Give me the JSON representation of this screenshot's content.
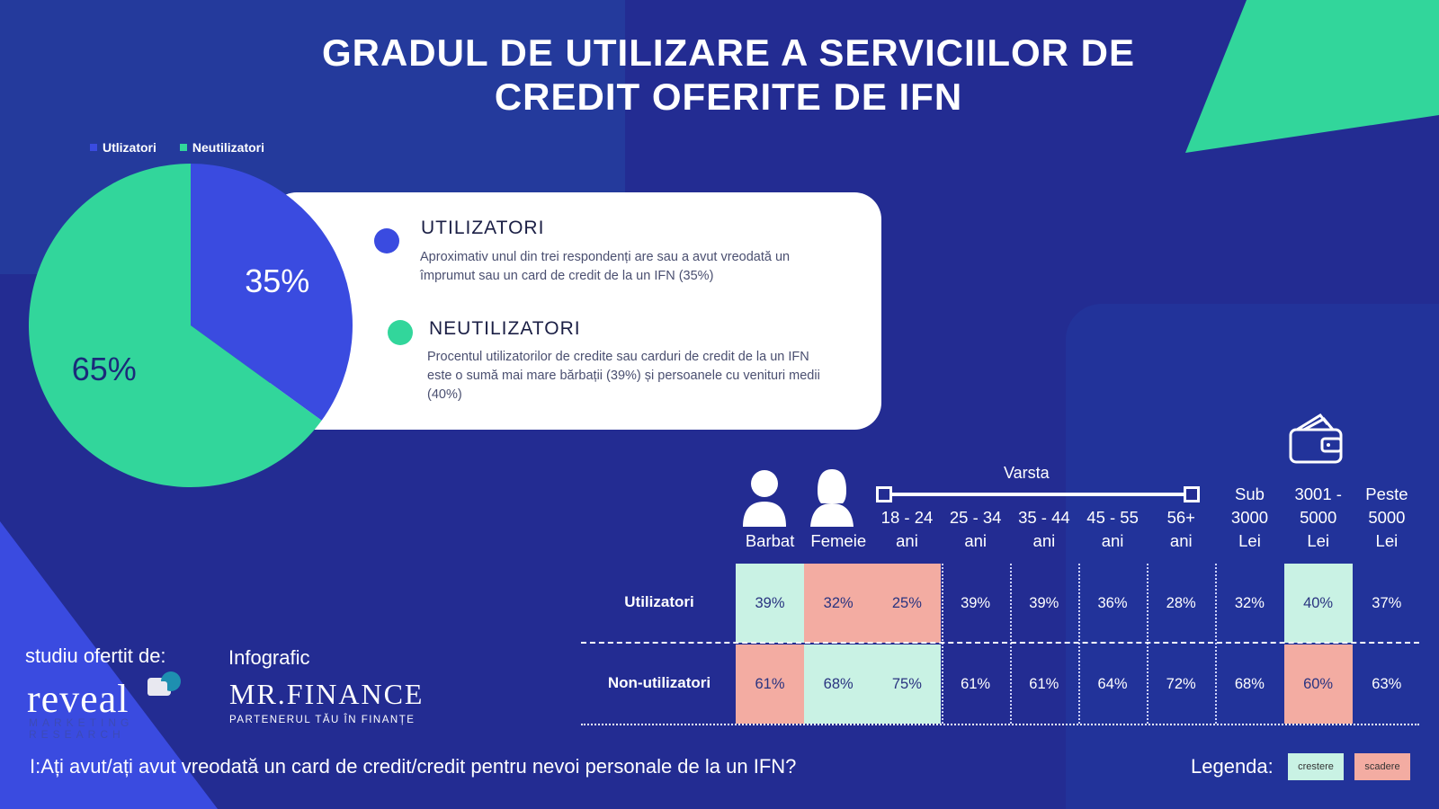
{
  "title_line1": "GRADUL DE UTILIZARE A SERVICIILOR DE",
  "title_line2": "CREDIT OFERITE DE IFN",
  "colors": {
    "users": "#3a4be0",
    "nonusers": "#32d69b",
    "increase": "#c9f2e4",
    "decrease": "#f3aca2",
    "background": "#232c92"
  },
  "legend": {
    "users": "Utlizatori",
    "nonusers": "Neutilizatori"
  },
  "chart_data": [
    {
      "type": "pie",
      "slices": [
        {
          "name": "Utlizatori",
          "value": 35,
          "label": "35%"
        },
        {
          "name": "Neutilizatori",
          "value": 65,
          "label": "65%"
        }
      ]
    },
    {
      "type": "table",
      "group_label": "Varsta",
      "columns": [
        [
          "Barbat"
        ],
        [
          "Femeie"
        ],
        [
          "18 - 24",
          "ani"
        ],
        [
          "25 - 34",
          "ani"
        ],
        [
          "35 - 44",
          "ani"
        ],
        [
          "45 - 55",
          "ani"
        ],
        [
          "56+",
          "ani"
        ],
        [
          "Sub",
          "3000",
          "Lei"
        ],
        [
          "3001 -",
          "5000",
          "Lei"
        ],
        [
          "Peste",
          "5000",
          "Lei"
        ]
      ],
      "rows": [
        {
          "label": "Utilizatori",
          "values": [
            "39%",
            "32%",
            "25%",
            "39%",
            "39%",
            "36%",
            "28%",
            "32%",
            "40%",
            "37%"
          ],
          "marks": [
            "increase",
            "decrease",
            "decrease",
            "",
            "",
            "",
            "",
            "",
            "increase",
            ""
          ]
        },
        {
          "label": "Non-utilizatori",
          "values": [
            "61%",
            "68%",
            "75%",
            "61%",
            "61%",
            "64%",
            "72%",
            "68%",
            "60%",
            "63%"
          ],
          "marks": [
            "decrease",
            "increase",
            "increase",
            "",
            "",
            "",
            "",
            "",
            "decrease",
            ""
          ]
        }
      ]
    }
  ],
  "card": {
    "users_title": "UTILIZATORI",
    "users_desc": "Aproximativ unul din trei respondenți are sau a avut vreodată un împrumut sau un card de credit de la un IFN (35%)",
    "nonusers_title": "NEUTILIZATORI",
    "nonusers_desc": "Procentul utilizatorilor de credite sau carduri de credit de la un IFN este o sumă mai mare bărbații (39%) și persoanele cu venituri medii (40%)"
  },
  "footer": {
    "studiu": "studiu ofertit de:",
    "reveal": "reveal",
    "reveal_sub1": "MARKETING",
    "reveal_sub2": "RESEARCH",
    "infografic": "Infografic",
    "mrfinance": "MR.FINANCE",
    "mrfinance_sub": "PARTENERUL TĂU ÎN FINANȚE",
    "question": "I:Ați avut/ați avut vreodată un card de credit/credit pentru nevoi personale de la un IFN?",
    "legenda": "Legenda:",
    "crestere": "crestere",
    "scadere": "scadere"
  },
  "icons": [
    "man-icon",
    "woman-icon",
    "wallet-icon"
  ]
}
